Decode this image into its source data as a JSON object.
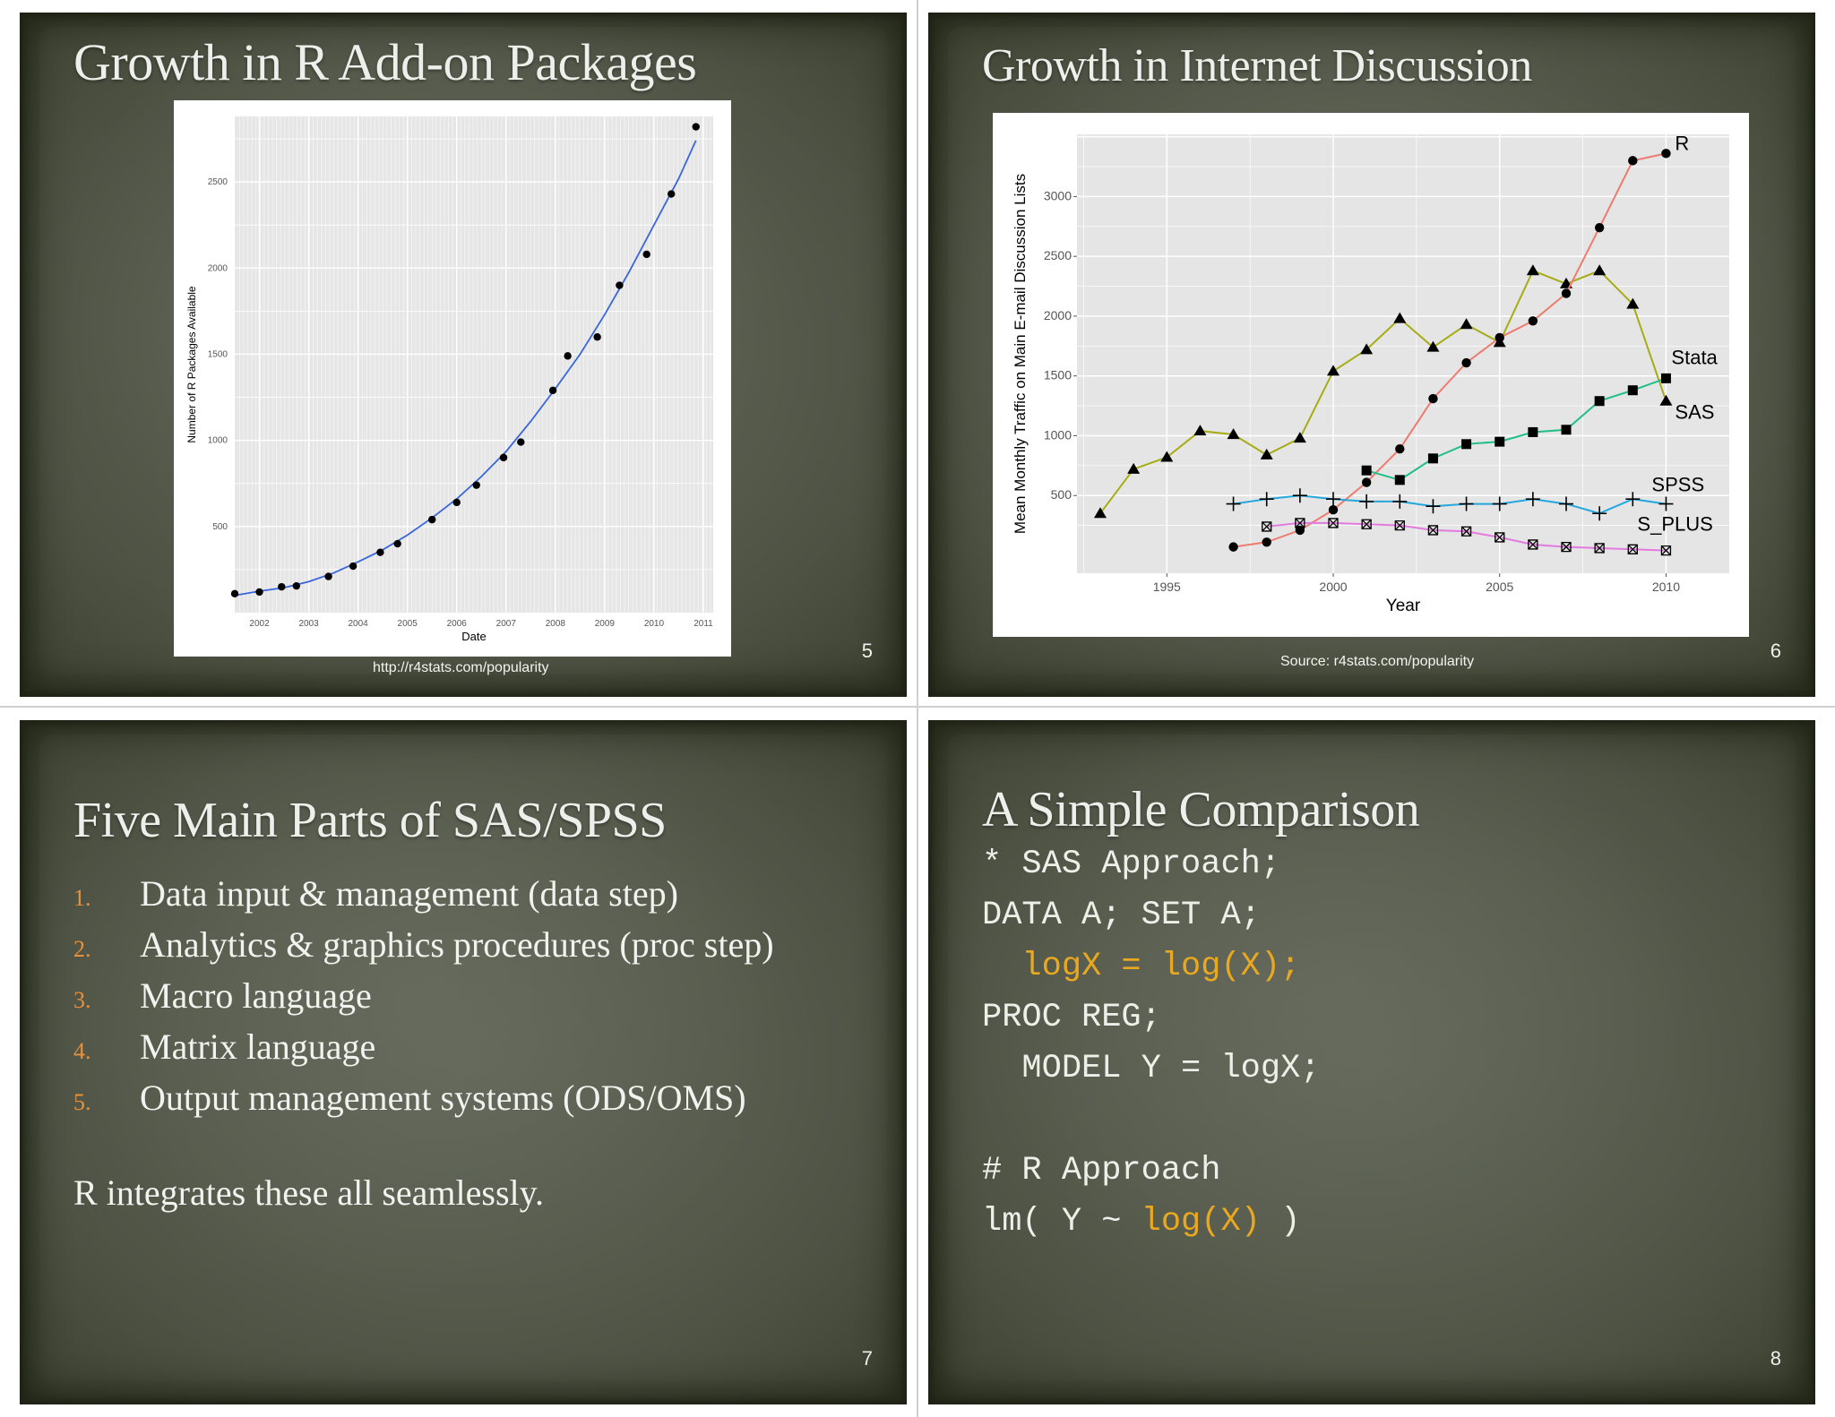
{
  "slides": [
    {
      "number": "5",
      "title": "Growth in R Add-on Packages",
      "source": "http://r4stats.com/popularity",
      "chart_data": {
        "type": "scatter",
        "title": "",
        "xlabel": "Date",
        "ylabel": "Number of R Packages Available",
        "xlim": [
          2001.5,
          2011.2
        ],
        "ylim": [
          0,
          2880
        ],
        "x_ticks": [
          "2002",
          "2003",
          "2004",
          "2005",
          "2006",
          "2007",
          "2008",
          "2009",
          "2010",
          "2011"
        ],
        "y_ticks": [
          "500",
          "1000",
          "1500",
          "2000",
          "2500"
        ],
        "grid": true,
        "trend_color": "#3a66dd",
        "points": [
          [
            2001.5,
            110
          ],
          [
            2002.0,
            120
          ],
          [
            2002.45,
            150
          ],
          [
            2002.75,
            155
          ],
          [
            2003.4,
            210
          ],
          [
            2003.9,
            270
          ],
          [
            2004.45,
            350
          ],
          [
            2004.8,
            400
          ],
          [
            2005.5,
            540
          ],
          [
            2006.0,
            640
          ],
          [
            2006.4,
            740
          ],
          [
            2006.95,
            900
          ],
          [
            2007.3,
            990
          ],
          [
            2007.95,
            1290
          ],
          [
            2008.25,
            1490
          ],
          [
            2008.85,
            1600
          ],
          [
            2009.3,
            1900
          ],
          [
            2009.85,
            2080
          ],
          [
            2010.35,
            2430
          ],
          [
            2010.85,
            2820
          ]
        ],
        "trend": [
          [
            2001.5,
            100
          ],
          [
            2002,
            125
          ],
          [
            2002.5,
            145
          ],
          [
            2003,
            180
          ],
          [
            2003.5,
            230
          ],
          [
            2004,
            295
          ],
          [
            2004.5,
            365
          ],
          [
            2005,
            450
          ],
          [
            2005.5,
            550
          ],
          [
            2006,
            660
          ],
          [
            2006.5,
            790
          ],
          [
            2007,
            935
          ],
          [
            2007.5,
            1110
          ],
          [
            2008,
            1300
          ],
          [
            2008.5,
            1500
          ],
          [
            2009,
            1730
          ],
          [
            2009.5,
            1980
          ],
          [
            2010,
            2250
          ],
          [
            2010.5,
            2520
          ],
          [
            2010.85,
            2740
          ]
        ]
      }
    },
    {
      "number": "6",
      "title": "Growth in Internet Discussion",
      "source": "Source: r4stats.com/popularity",
      "chart_data": {
        "type": "line",
        "title": "",
        "xlabel": "Year",
        "ylabel": "Mean Monthly Traffic on Main E-mail Discussion Lists",
        "xlim": [
          1992.3,
          2011.9
        ],
        "ylim": [
          -150,
          3520
        ],
        "x_ticks": [
          1995,
          2000,
          2005,
          2010
        ],
        "y_ticks": [
          500,
          1000,
          1500,
          2000,
          2500,
          3000
        ],
        "grid": true,
        "series": [
          {
            "name": "SAS",
            "label": "SAS",
            "color": "#a6ad14",
            "marker": "triangle",
            "x": [
              1993,
              1994,
              1995,
              1996,
              1997,
              1998,
              1999,
              2000,
              2001,
              2002,
              2003,
              2004,
              2005,
              2006,
              2007,
              2008,
              2009,
              2010
            ],
            "y": [
              350,
              720,
              820,
              1040,
              1010,
              840,
              980,
              1540,
              1720,
              1980,
              1740,
              1930,
              1780,
              2380,
              2270,
              2380,
              2100,
              1290
            ]
          },
          {
            "name": "R",
            "label": "R",
            "color": "#ef7a6e",
            "marker": "circle",
            "x": [
              1997,
              1998,
              1999,
              2000,
              2001,
              2002,
              2003,
              2004,
              2005,
              2006,
              2007,
              2008,
              2009,
              2010
            ],
            "y": [
              70,
              110,
              210,
              380,
              610,
              890,
              1310,
              1610,
              1820,
              1960,
              2190,
              2740,
              3300,
              3360
            ]
          },
          {
            "name": "Stata",
            "label": "Stata",
            "color": "#1fbf86",
            "marker": "square",
            "x": [
              2001,
              2002,
              2003,
              2004,
              2005,
              2006,
              2007,
              2008,
              2009,
              2010
            ],
            "y": [
              710,
              630,
              810,
              930,
              950,
              1030,
              1050,
              1290,
              1380,
              1480
            ]
          },
          {
            "name": "SPSS",
            "label": "SPSS",
            "color": "#23a8dd",
            "marker": "plus",
            "x": [
              1997,
              1998,
              1999,
              2000,
              2001,
              2002,
              2003,
              2004,
              2005,
              2006,
              2007,
              2008,
              2009,
              2010
            ],
            "y": [
              430,
              470,
              500,
              470,
              450,
              450,
              410,
              430,
              430,
              470,
              430,
              350,
              470,
              430
            ]
          },
          {
            "name": "S_PLUS",
            "label": "S_PLUS",
            "color": "#e27ae0",
            "marker": "boxx",
            "x": [
              1998,
              1999,
              2000,
              2001,
              2002,
              2003,
              2004,
              2005,
              2006,
              2007,
              2008,
              2009,
              2010
            ],
            "y": [
              240,
              270,
              270,
              260,
              250,
              210,
              200,
              150,
              90,
              70,
              60,
              50,
              40
            ]
          }
        ]
      }
    },
    {
      "number": "7",
      "title": "Five Main Parts of SAS/SPSS",
      "items": [
        {
          "n": "1.",
          "text": "Data input & management (data step)"
        },
        {
          "n": "2.",
          "text": "Analytics & graphics procedures (proc step)"
        },
        {
          "n": "3.",
          "text": "Macro language"
        },
        {
          "n": "4.",
          "text": "Matrix language"
        },
        {
          "n": "5.",
          "text": "Output management systems (ODS/OMS)"
        }
      ],
      "closing": "R integrates these all seamlessly."
    },
    {
      "number": "8",
      "title": "A Simple Comparison",
      "code": {
        "l1": "* SAS Approach;",
        "l2": "DATA A; SET A;",
        "l3": "  logX = log(X);",
        "l4": "PROC REG;",
        "l5": "  MODEL Y = logX;",
        "l6": "# R Approach",
        "l7a": "lm( Y ~ ",
        "l7b": "log(X)",
        "l7c": " )"
      }
    }
  ]
}
